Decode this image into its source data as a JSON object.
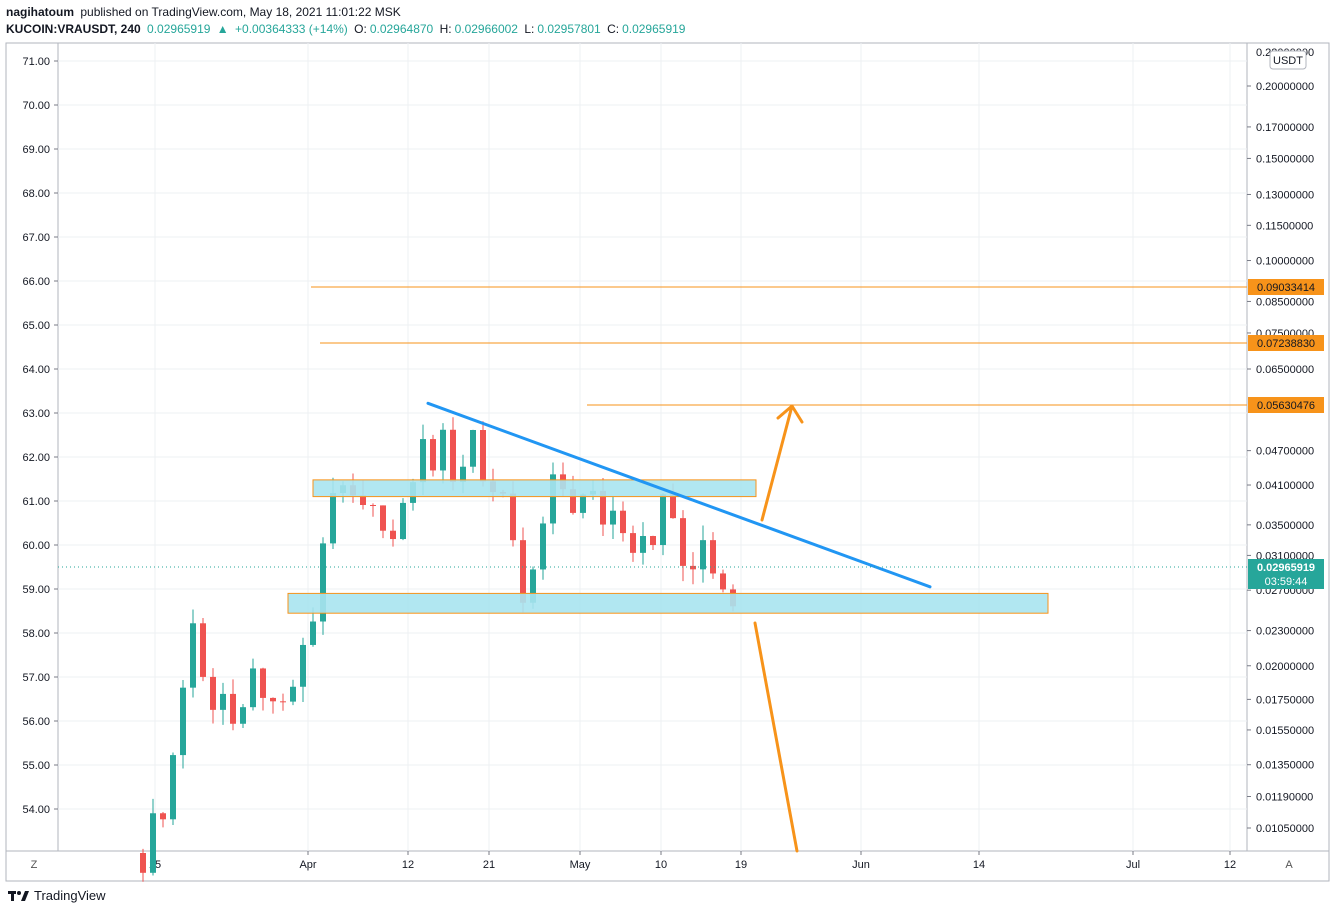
{
  "header": {
    "author": "nagihatoum",
    "published": "published on TradingView.com, May 18, 2021 11:01:22 MSK",
    "symbol": "KUCOIN:VRAUSDT, 240",
    "price": "0.02965919",
    "change_arrow": "▲",
    "change": "+0.00364333 (+14%)",
    "o_label": "O:",
    "o_val": "0.02964870",
    "h_label": "H:",
    "h_val": "0.02966002",
    "l_label": "L:",
    "l_val": "0.02957801",
    "c_label": "C:",
    "c_val": "0.02965919"
  },
  "footer": {
    "brand": "TradingView"
  },
  "corners": {
    "left": "Z",
    "right": "A"
  },
  "colors": {
    "up": "#26a69a",
    "down": "#ef5350",
    "orange": "#f7931a",
    "blue": "#2196f3",
    "zone": "#a8e4ef"
  },
  "chart_data": {
    "type": "candlestick",
    "currency": "USDT",
    "left_axis_ticks": [
      "71.00",
      "70.00",
      "69.00",
      "68.00",
      "67.00",
      "66.00",
      "65.00",
      "64.00",
      "63.00",
      "62.00",
      "61.00",
      "60.00",
      "59.00",
      "58.00",
      "57.00",
      "56.00",
      "55.00",
      "54.00"
    ],
    "right_axis_ticks": [
      "0.20000000",
      "0.17000000",
      "0.15000000",
      "0.13000000",
      "0.11500000",
      "0.10000000",
      "0.08500000",
      "0.07500000",
      "0.06500000",
      "0.05630476",
      "0.04700000",
      "0.04100000",
      "0.03500000",
      "0.03100000",
      "0.02700000",
      "0.02300000",
      "0.02000000",
      "0.01750000",
      "0.01550000",
      "0.01350000",
      "0.01190000",
      "0.01050000"
    ],
    "right_axis_top_partial": "0.22000000",
    "x_labels": [
      "15",
      "Apr",
      "12",
      "21",
      "May",
      "10",
      "19",
      "Jun",
      "14",
      "Jul",
      "12"
    ],
    "last_price": "0.02965919",
    "countdown": "03:59:44",
    "resistance_levels": [
      "0.09033414",
      "0.07238830",
      "0.05630476"
    ],
    "support_zone_left": [
      58.9,
      58.45
    ],
    "resistance_zone_left": [
      61.48,
      61.1
    ],
    "trendline_left": [
      [
        63.22,
        59.05
      ]
    ],
    "candle_path_left": [
      [
        53.0,
        53.7
      ],
      [
        53.5,
        54.3
      ],
      [
        54.1,
        55.1
      ],
      [
        55.0,
        56.8
      ],
      [
        56.6,
        58.7
      ],
      [
        58.5,
        57.2
      ],
      [
        57.0,
        56.5
      ],
      [
        56.4,
        57.1
      ],
      [
        57.0,
        56.2
      ],
      [
        56.1,
        55.4
      ],
      [
        55.5,
        56.6
      ],
      [
        56.7,
        57.3
      ],
      [
        57.2,
        56.3
      ],
      [
        56.2,
        55.7
      ],
      [
        55.8,
        56.6
      ],
      [
        56.5,
        57.2
      ],
      [
        57.1,
        57.5
      ],
      [
        57.6,
        58.8
      ],
      [
        58.9,
        60.5
      ],
      [
        60.6,
        61.8
      ],
      [
        61.7,
        60.8
      ],
      [
        60.9,
        61.2
      ],
      [
        61.1,
        60.6
      ],
      [
        60.7,
        61.0
      ],
      [
        61.1,
        60.6
      ],
      [
        60.5,
        60.2
      ],
      [
        60.3,
        61.0
      ],
      [
        61.1,
        61.9
      ],
      [
        62.0,
        62.8
      ],
      [
        62.7,
        61.7
      ],
      [
        61.8,
        62.3
      ],
      [
        62.2,
        61.1
      ],
      [
        61.2,
        61.8
      ],
      [
        61.9,
        62.7
      ],
      [
        62.8,
        61.9
      ],
      [
        61.8,
        61.3
      ],
      [
        61.2,
        60.8
      ],
      [
        60.9,
        60.2
      ],
      [
        60.1,
        58.6
      ],
      [
        58.7,
        58.7
      ],
      [
        58.8,
        60.0
      ],
      [
        60.1,
        60.9
      ],
      [
        61.0,
        61.6
      ],
      [
        61.5,
        61.0
      ],
      [
        61.1,
        60.9
      ],
      [
        60.8,
        61.1
      ],
      [
        61.2,
        60.7
      ],
      [
        60.8,
        60.6
      ],
      [
        60.5,
        60.9
      ],
      [
        61.0,
        60.3
      ],
      [
        60.4,
        60.1
      ],
      [
        60.0,
        60.5
      ],
      [
        60.6,
        60.2
      ],
      [
        60.3,
        61.1
      ],
      [
        61.0,
        60.5
      ],
      [
        60.4,
        59.4
      ],
      [
        59.5,
        59.0
      ],
      [
        59.1,
        60.2
      ],
      [
        60.3,
        59.6
      ],
      [
        59.5,
        59.1
      ],
      [
        59.2,
        58.8
      ],
      [
        58.9,
        59.7
      ]
    ]
  }
}
